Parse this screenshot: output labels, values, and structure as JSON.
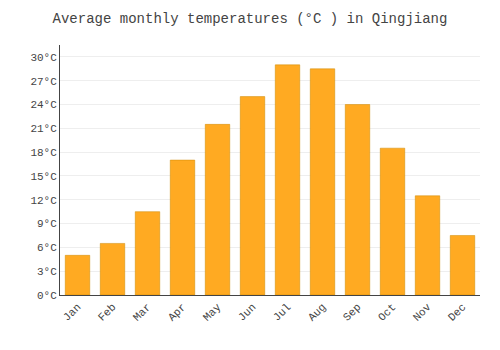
{
  "chart_data": {
    "type": "bar",
    "title": "Average monthly temperatures (°C ) in Qingjiang",
    "categories": [
      "Jan",
      "Feb",
      "Mar",
      "Apr",
      "May",
      "Jun",
      "Jul",
      "Aug",
      "Sep",
      "Oct",
      "Nov",
      "Dec"
    ],
    "values": [
      5.0,
      6.5,
      10.5,
      17.0,
      21.5,
      25.0,
      29.0,
      28.5,
      24.0,
      18.5,
      12.5,
      7.5
    ],
    "color": "#FFAA22",
    "ylim": [
      0,
      31.5
    ],
    "yticks": [
      {
        "value": 0,
        "label": "0°C"
      },
      {
        "value": 3,
        "label": "3°C"
      },
      {
        "value": 6,
        "label": "6°C"
      },
      {
        "value": 9,
        "label": "9°C"
      },
      {
        "value": 12,
        "label": "12°C"
      },
      {
        "value": 15,
        "label": "15°C"
      },
      {
        "value": 18,
        "label": "18°C"
      },
      {
        "value": 21,
        "label": "21°C"
      },
      {
        "value": 24,
        "label": "24°C"
      },
      {
        "value": 27,
        "label": "27°C"
      },
      {
        "value": 30,
        "label": "30°C"
      }
    ],
    "grid": true
  }
}
